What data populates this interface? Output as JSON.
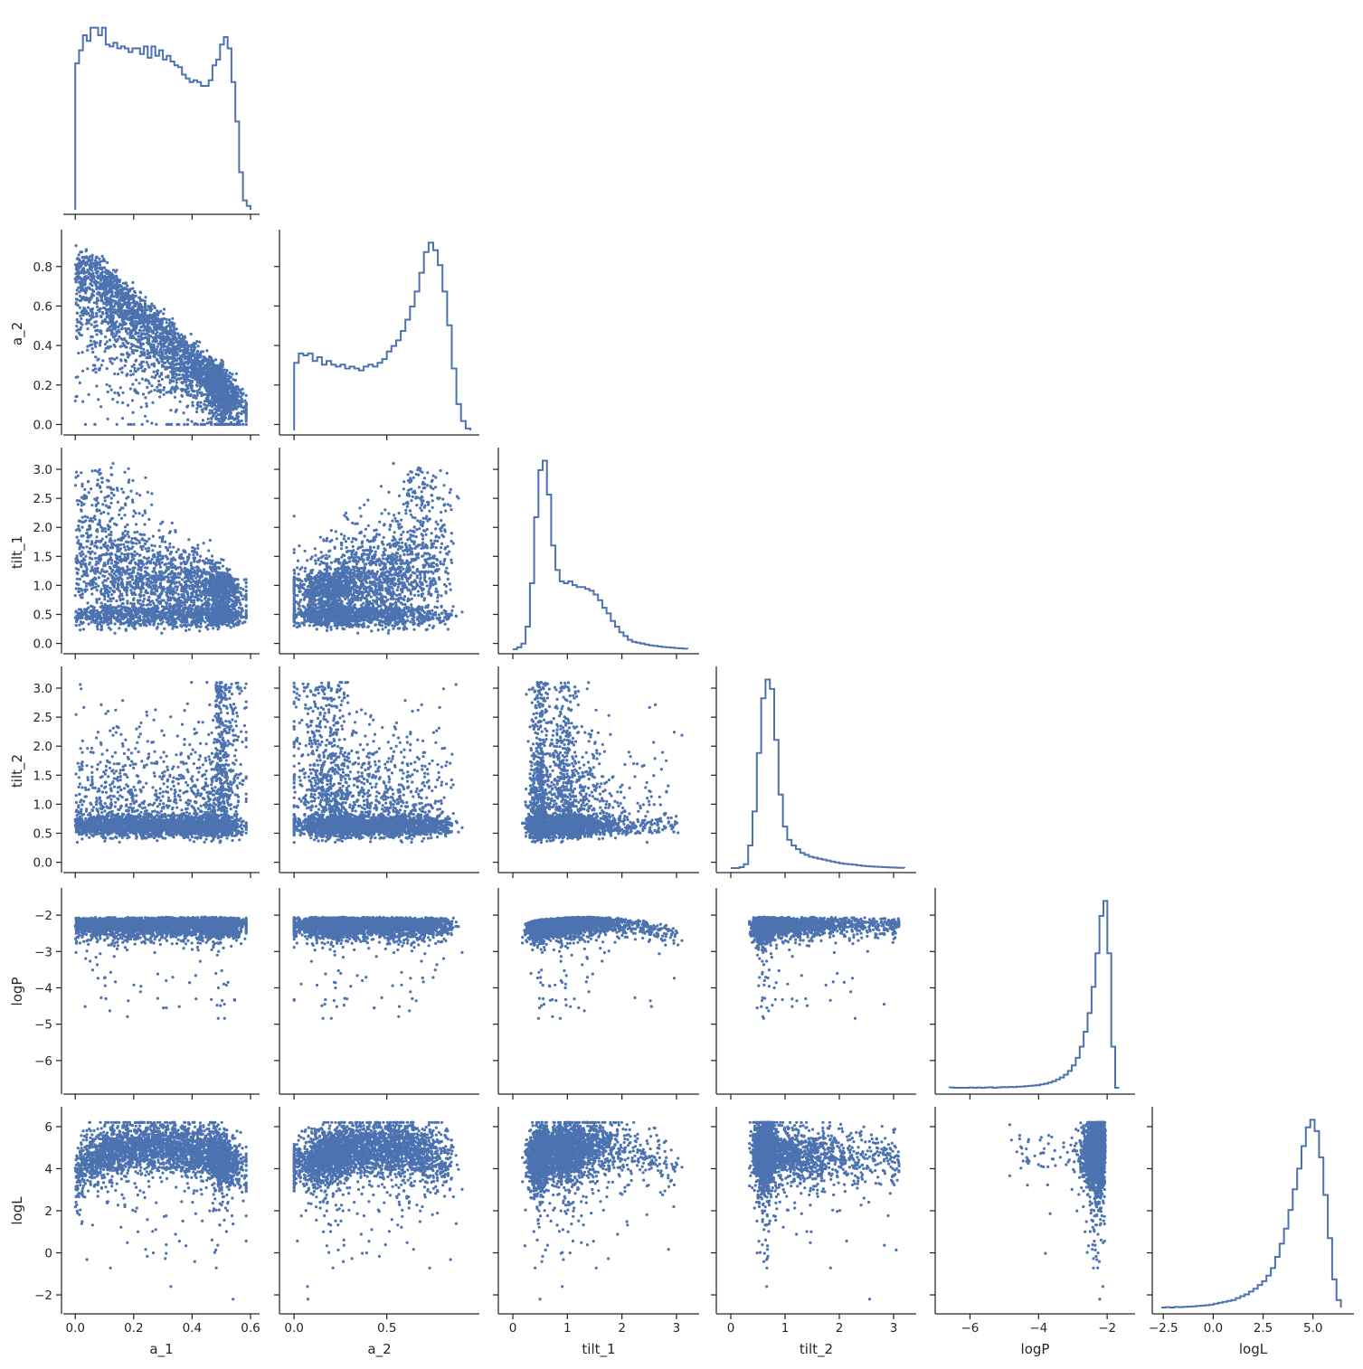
{
  "chart_data": {
    "type": "pairplot",
    "corner": true,
    "variables": [
      "a_1",
      "a_2",
      "tilt_1",
      "tilt_2",
      "logP",
      "logL"
    ],
    "color": "#4c72b0",
    "diag_kind": "step-histogram",
    "offdiag_kind": "scatter",
    "axes": {
      "a_1": {
        "label": "a_1",
        "lim": [
          -0.01,
          0.6
        ],
        "ticks": [
          0.0,
          0.2,
          0.4,
          0.6
        ],
        "tick_labels": [
          "0.0",
          "0.2",
          "0.4",
          "0.6"
        ]
      },
      "a_2": {
        "label": "a_2",
        "lim": [
          -0.03,
          0.95
        ],
        "ticks": [
          0.0,
          0.5
        ],
        "tick_labels": [
          "0.0",
          "0.5"
        ],
        "y_ticks": [
          0.0,
          0.2,
          0.4,
          0.6,
          0.8
        ],
        "y_tick_labels": [
          "0.0",
          "0.2",
          "0.4",
          "0.6",
          "0.8"
        ]
      },
      "tilt_1": {
        "label": "tilt_1",
        "lim": [
          -0.1,
          3.25
        ],
        "ticks": [
          0,
          1,
          2,
          3
        ],
        "tick_labels": [
          "0",
          "1",
          "2",
          "3"
        ],
        "y_ticks": [
          0.0,
          0.5,
          1.0,
          1.5,
          2.0,
          2.5,
          3.0
        ],
        "y_tick_labels": [
          "0.0",
          "0.5",
          "1.0",
          "1.5",
          "2.0",
          "2.5",
          "3.0"
        ]
      },
      "tilt_2": {
        "label": "tilt_2",
        "lim": [
          -0.1,
          3.25
        ],
        "ticks": [
          0,
          1,
          2,
          3
        ],
        "tick_labels": [
          "0",
          "1",
          "2",
          "3"
        ],
        "y_ticks": [
          0.0,
          0.5,
          1.0,
          1.5,
          2.0,
          2.5,
          3.0
        ],
        "y_tick_labels": [
          "0.0",
          "0.5",
          "1.0",
          "1.5",
          "2.0",
          "2.5",
          "3.0"
        ]
      },
      "logP": {
        "label": "logP",
        "lim": [
          -6.75,
          -1.45
        ],
        "ticks": [
          -6,
          -4,
          -2
        ],
        "tick_labels": [
          "−6",
          "−4",
          "−2"
        ],
        "y_ticks": [
          -6,
          -5,
          -4,
          -3,
          -2
        ],
        "y_tick_labels": [
          "−6",
          "−5",
          "−4",
          "−3",
          "−2"
        ]
      },
      "logL": {
        "label": "logL",
        "lim": [
          -2.6,
          6.6
        ],
        "ticks": [
          -2.5,
          0.0,
          2.5,
          5.0
        ],
        "tick_labels": [
          "−2.5",
          "0.0",
          "2.5",
          "5.0"
        ],
        "y_ticks": [
          -2,
          0,
          2,
          4,
          6
        ],
        "y_tick_labels": [
          "−2",
          "0",
          "2",
          "4",
          "6"
        ]
      }
    },
    "histograms": {
      "a_1": {
        "range": [
          0.0,
          0.6
        ],
        "counts": [
          0.78,
          0.85,
          0.93,
          0.9,
          0.97,
          0.97,
          0.93,
          0.97,
          0.88,
          0.87,
          0.89,
          0.86,
          0.87,
          0.86,
          0.84,
          0.86,
          0.86,
          0.83,
          0.87,
          0.81,
          0.87,
          0.82,
          0.85,
          0.8,
          0.82,
          0.79,
          0.77,
          0.76,
          0.72,
          0.7,
          0.68,
          0.69,
          0.68,
          0.66,
          0.66,
          0.69,
          0.77,
          0.8,
          0.88,
          0.92,
          0.86,
          0.68,
          0.47,
          0.2,
          0.05,
          0.02
        ]
      },
      "a_2": {
        "range": [
          0.0,
          0.95
        ],
        "counts": [
          0.36,
          0.41,
          0.4,
          0.41,
          0.37,
          0.39,
          0.35,
          0.37,
          0.35,
          0.34,
          0.35,
          0.33,
          0.34,
          0.33,
          0.32,
          0.34,
          0.35,
          0.34,
          0.36,
          0.38,
          0.42,
          0.45,
          0.48,
          0.53,
          0.59,
          0.66,
          0.74,
          0.84,
          0.95,
          1.0,
          0.96,
          0.88,
          0.74,
          0.56,
          0.33,
          0.14,
          0.05,
          0.01
        ]
      },
      "tilt_1": {
        "range": [
          0.0,
          3.2
        ],
        "counts": [
          0.0,
          0.01,
          0.03,
          0.12,
          0.35,
          0.7,
          0.95,
          1.0,
          0.82,
          0.55,
          0.42,
          0.36,
          0.35,
          0.36,
          0.34,
          0.33,
          0.33,
          0.32,
          0.31,
          0.29,
          0.26,
          0.22,
          0.19,
          0.15,
          0.12,
          0.09,
          0.07,
          0.05,
          0.04,
          0.035,
          0.03,
          0.025,
          0.02,
          0.018,
          0.015,
          0.012,
          0.01,
          0.008,
          0.006,
          0.005,
          0.003
        ]
      },
      "tilt_2": {
        "range": [
          0.0,
          3.2
        ],
        "counts": [
          0.0,
          0.0,
          0.005,
          0.02,
          0.12,
          0.3,
          0.61,
          0.9,
          1.0,
          0.95,
          0.68,
          0.39,
          0.22,
          0.15,
          0.12,
          0.1,
          0.08,
          0.07,
          0.06,
          0.055,
          0.05,
          0.045,
          0.04,
          0.035,
          0.03,
          0.025,
          0.022,
          0.02,
          0.018,
          0.015,
          0.012,
          0.01,
          0.008,
          0.007,
          0.006,
          0.005,
          0.004,
          0.003,
          0.002,
          0.001
        ]
      },
      "logP": {
        "range": [
          -6.6,
          -1.65
        ],
        "counts": [
          0.002,
          0.0,
          0.0,
          0.0,
          0.0,
          0.002,
          0.0,
          0.002,
          0.0,
          0.002,
          0.003,
          0.0,
          0.002,
          0.004,
          0.003,
          0.005,
          0.004,
          0.006,
          0.007,
          0.008,
          0.01,
          0.012,
          0.014,
          0.018,
          0.022,
          0.028,
          0.035,
          0.045,
          0.055,
          0.07,
          0.09,
          0.12,
          0.16,
          0.22,
          0.3,
          0.4,
          0.54,
          0.72,
          0.92,
          1.0,
          0.72,
          0.22,
          0.0
        ]
      },
      "logL": {
        "range": [
          -2.6,
          6.4
        ],
        "counts": [
          0.0,
          0.002,
          0.0,
          0.003,
          0.002,
          0.004,
          0.005,
          0.006,
          0.008,
          0.01,
          0.012,
          0.015,
          0.02,
          0.025,
          0.03,
          0.035,
          0.04,
          0.05,
          0.06,
          0.07,
          0.085,
          0.1,
          0.12,
          0.14,
          0.17,
          0.21,
          0.27,
          0.34,
          0.42,
          0.52,
          0.63,
          0.74,
          0.86,
          0.96,
          1.0,
          0.94,
          0.8,
          0.6,
          0.37,
          0.15,
          0.04
        ]
      }
    },
    "scatter": {
      "marker_size": 1.6,
      "points_per_panel": 3200
    }
  }
}
